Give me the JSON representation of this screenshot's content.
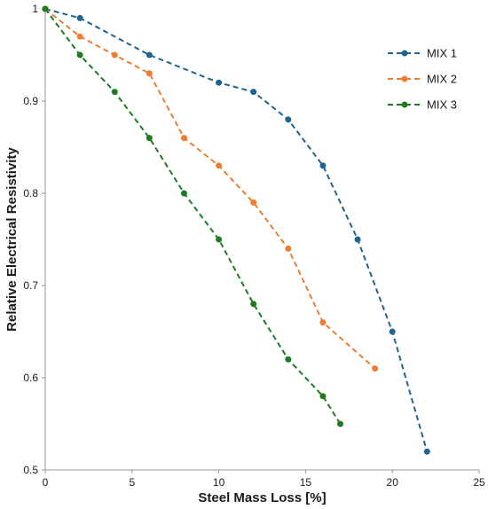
{
  "chart_data": {
    "type": "line",
    "xlabel": "Steel Mass Loss [%]",
    "ylabel": "Relative Electrical Resistivity",
    "xlim": [
      0,
      25
    ],
    "ylim": [
      0.5,
      1
    ],
    "x_ticks": [
      0,
      5,
      10,
      15,
      20,
      25
    ],
    "x_tick_labels": [
      "0",
      "5",
      "10",
      "15",
      "20",
      "25"
    ],
    "y_ticks": [
      0.5,
      0.6,
      0.7,
      0.8,
      0.9,
      1
    ],
    "y_tick_labels": [
      "0.5",
      "0.6",
      "0.7",
      "0.8",
      "0.9",
      "1"
    ],
    "grid": false,
    "legend_position": "top-right",
    "line_style": "dashed",
    "series": [
      {
        "name": "MIX 1",
        "color": "#1f6391",
        "points": [
          [
            0,
            1.0
          ],
          [
            2,
            0.99
          ],
          [
            6,
            0.95
          ],
          [
            10,
            0.92
          ],
          [
            12,
            0.91
          ],
          [
            14,
            0.88
          ],
          [
            16,
            0.83
          ],
          [
            18,
            0.75
          ],
          [
            20,
            0.65
          ],
          [
            22,
            0.52
          ]
        ]
      },
      {
        "name": "MIX 2",
        "color": "#ed7d31",
        "points": [
          [
            0,
            1.0
          ],
          [
            2,
            0.97
          ],
          [
            4,
            0.95
          ],
          [
            6,
            0.93
          ],
          [
            8,
            0.86
          ],
          [
            10,
            0.83
          ],
          [
            12,
            0.79
          ],
          [
            14,
            0.74
          ],
          [
            16,
            0.66
          ],
          [
            19,
            0.61
          ]
        ]
      },
      {
        "name": "MIX 3",
        "color": "#1e7b22",
        "points": [
          [
            0,
            1.0
          ],
          [
            2,
            0.95
          ],
          [
            4,
            0.91
          ],
          [
            6,
            0.86
          ],
          [
            8,
            0.8
          ],
          [
            10,
            0.75
          ],
          [
            12,
            0.68
          ],
          [
            14,
            0.62
          ],
          [
            16,
            0.58
          ],
          [
            17,
            0.55
          ]
        ]
      }
    ]
  }
}
